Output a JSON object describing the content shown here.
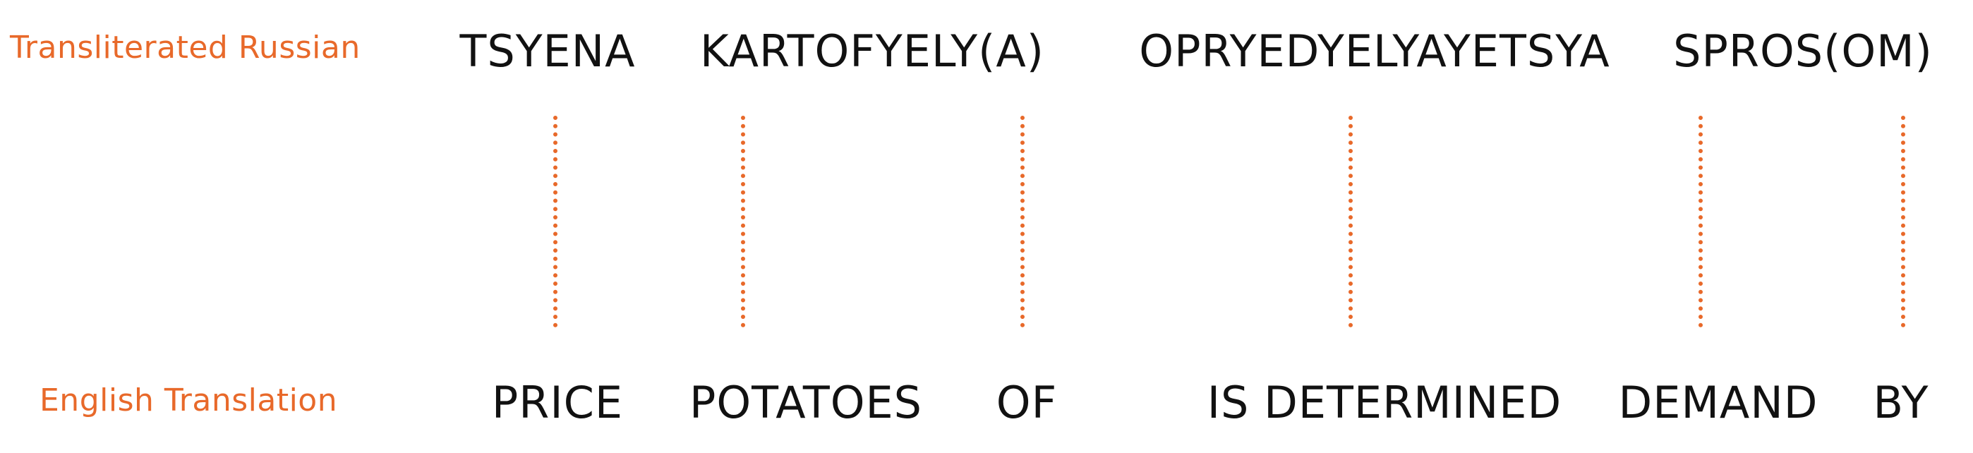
{
  "row_labels": {
    "top": "Transliterated Russian",
    "bottom": "English Translation"
  },
  "russian_words": [
    "TSYENA",
    "KARTOFYELY(A)",
    "OPRYEDYELYAYETSYA",
    "SPROS(OM)"
  ],
  "english_words": [
    "PRICE",
    "POTATOES",
    "OF",
    "IS DETERMINED",
    "DEMAND",
    "BY"
  ],
  "colors": {
    "accent": "#e8692a",
    "text": "#111111",
    "background": "#ffffff"
  }
}
